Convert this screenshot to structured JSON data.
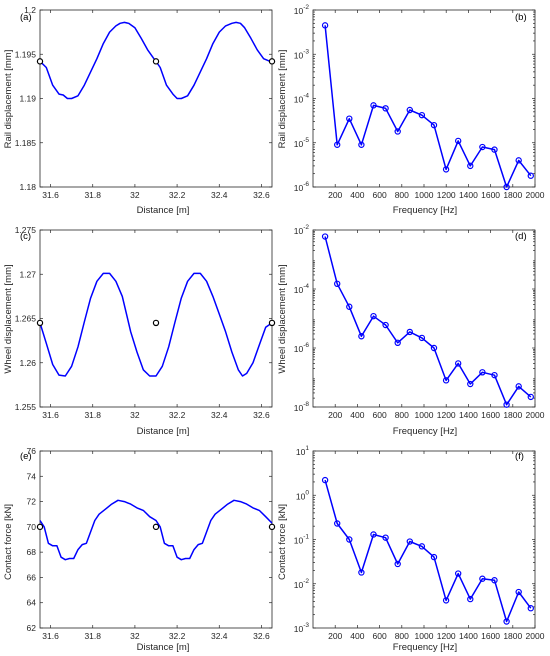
{
  "colors": {
    "series": "#0000ff",
    "marker_dark": "#000000",
    "axis": "#262626"
  },
  "chart_data": [
    {
      "id": "a",
      "type": "line",
      "panel_label": "(a)",
      "xlabel": "Distance [m]",
      "ylabel": "Rail displacement [mm]",
      "xlim": [
        31.55,
        32.65
      ],
      "ylim": [
        1.18,
        1.2
      ],
      "yscale": "linear",
      "xticks": [
        31.6,
        31.8,
        32,
        32.2,
        32.4,
        32.6
      ],
      "xtick_labels": [
        "31.6",
        "31.8",
        "32",
        "32.2",
        "32.4",
        "32.6"
      ],
      "yticks": [
        1.18,
        1.185,
        1.19,
        1.195,
        1.2
      ],
      "ytick_labels": [
        "1.18",
        "1.185",
        "1.19",
        "1.195",
        "1.2"
      ],
      "series": [
        {
          "x": [
            31.55,
            31.58,
            31.61,
            31.64,
            31.66,
            31.68,
            31.7,
            31.73,
            31.76,
            31.79,
            31.82,
            31.85,
            31.88,
            31.91,
            31.93,
            31.95,
            31.97,
            32.0,
            32.03,
            32.06,
            32.09,
            32.1,
            32.12,
            32.15,
            32.18,
            32.2,
            32.22,
            32.25,
            32.28,
            32.31,
            32.34,
            32.37,
            32.4,
            32.43,
            32.46,
            32.48,
            32.5,
            32.52,
            32.55,
            32.58,
            32.61,
            32.64
          ],
          "y": [
            1.1942,
            1.1935,
            1.1915,
            1.1905,
            1.1904,
            1.19,
            1.19,
            1.1903,
            1.1915,
            1.193,
            1.1945,
            1.1962,
            1.1975,
            1.1982,
            1.1985,
            1.1986,
            1.1985,
            1.198,
            1.1968,
            1.1955,
            1.1945,
            1.1942,
            1.1935,
            1.1915,
            1.1905,
            1.19,
            1.19,
            1.1903,
            1.1915,
            1.193,
            1.1945,
            1.1962,
            1.1975,
            1.1982,
            1.1985,
            1.1986,
            1.1985,
            1.198,
            1.1968,
            1.1955,
            1.1945,
            1.1942
          ]
        }
      ],
      "markers": {
        "x": [
          31.55,
          32.1,
          32.65
        ],
        "y": [
          1.1942,
          1.1942,
          1.1942
        ]
      }
    },
    {
      "id": "b",
      "type": "line",
      "panel_label": "(b)",
      "xlabel": "Frequency [Hz]",
      "ylabel": "Rail displacement [mm]",
      "xlim": [
        0,
        2000
      ],
      "ylim": [
        1e-06,
        0.01
      ],
      "yscale": "log",
      "xticks": [
        200,
        400,
        600,
        800,
        1000,
        1200,
        1400,
        1600,
        1800,
        2000
      ],
      "xtick_labels": [
        "200",
        "400",
        "600",
        "800",
        "1000",
        "1200",
        "1400",
        "1600",
        "1800",
        "2000"
      ],
      "yticks": [
        1e-06,
        1e-05,
        0.0001,
        0.001,
        0.01
      ],
      "ytick_bases": [
        "10",
        "10",
        "10",
        "10",
        "10"
      ],
      "ytick_exps": [
        "-6",
        "-5",
        "-4",
        "-3",
        "-2"
      ],
      "series": [
        {
          "x": [
            109,
            218,
            327,
            436,
            545,
            654,
            763,
            872,
            981,
            1090,
            1199,
            1308,
            1417,
            1526,
            1635,
            1744,
            1853,
            1962
          ],
          "y": [
            0.0045,
            9e-06,
            3.5e-05,
            9e-06,
            7e-05,
            6e-05,
            1.8e-05,
            5.5e-05,
            4.2e-05,
            2.5e-05,
            2.5e-06,
            1.1e-05,
            3e-06,
            8e-06,
            7e-06,
            1e-06,
            4e-06,
            1.8e-06
          ]
        }
      ]
    },
    {
      "id": "c",
      "type": "line",
      "panel_label": "(c)",
      "xlabel": "Distance [m]",
      "ylabel": "Wheel displacement [mm]",
      "xlim": [
        31.55,
        32.65
      ],
      "ylim": [
        1.255,
        1.275
      ],
      "yscale": "linear",
      "xticks": [
        31.6,
        31.8,
        32,
        32.2,
        32.4,
        32.6
      ],
      "xtick_labels": [
        "31.6",
        "31.8",
        "32",
        "32.2",
        "32.4",
        "32.6"
      ],
      "yticks": [
        1.255,
        1.26,
        1.265,
        1.27,
        1.275
      ],
      "ytick_labels": [
        "1.255",
        "1.26",
        "1.265",
        "1.27",
        "1.275"
      ],
      "series": [
        {
          "x": [
            31.55,
            31.58,
            31.61,
            31.64,
            31.67,
            31.7,
            31.73,
            31.76,
            31.79,
            31.82,
            31.85,
            31.88,
            31.91,
            31.94,
            31.96,
            31.98,
            32.01,
            32.04,
            32.07,
            32.1,
            32.13,
            32.16,
            32.19,
            32.22,
            32.25,
            32.28,
            32.31,
            32.34,
            32.37,
            32.4,
            32.43,
            32.46,
            32.49,
            32.51,
            32.53,
            32.56,
            32.59,
            32.62,
            32.65
          ],
          "y": [
            1.2645,
            1.2622,
            1.2598,
            1.2586,
            1.2585,
            1.2596,
            1.2618,
            1.2646,
            1.2673,
            1.2692,
            1.2701,
            1.2701,
            1.2692,
            1.2675,
            1.2655,
            1.2635,
            1.2612,
            1.2592,
            1.2585,
            1.2585,
            1.2596,
            1.2618,
            1.2646,
            1.2673,
            1.2692,
            1.2701,
            1.2701,
            1.2692,
            1.2675,
            1.2655,
            1.2635,
            1.2612,
            1.2592,
            1.2585,
            1.2588,
            1.26,
            1.262,
            1.264,
            1.2645
          ]
        }
      ],
      "markers": {
        "x": [
          31.55,
          32.1,
          32.65
        ],
        "y": [
          1.2645,
          1.2645,
          1.2645
        ]
      }
    },
    {
      "id": "d",
      "type": "line",
      "panel_label": "(d)",
      "xlabel": "Frequency [Hz]",
      "ylabel": "Wheel displacement [mm]",
      "xlim": [
        0,
        2000
      ],
      "ylim": [
        1e-08,
        0.01
      ],
      "yscale": "log",
      "xticks": [
        200,
        400,
        600,
        800,
        1000,
        1200,
        1400,
        1600,
        1800,
        2000
      ],
      "xtick_labels": [
        "200",
        "400",
        "600",
        "800",
        "1000",
        "1200",
        "1400",
        "1600",
        "1800",
        "2000"
      ],
      "yticks": [
        1e-08,
        1e-06,
        0.0001,
        0.01
      ],
      "ytick_bases": [
        "10",
        "10",
        "10",
        "10"
      ],
      "ytick_exps": [
        "-8",
        "-6",
        "-4",
        "-2"
      ],
      "series": [
        {
          "x": [
            109,
            218,
            327,
            436,
            545,
            654,
            763,
            872,
            981,
            1090,
            1199,
            1308,
            1417,
            1526,
            1635,
            1744,
            1853,
            1962
          ],
          "y": [
            0.006,
            0.00015,
            2.5e-05,
            2.5e-06,
            1.2e-05,
            6e-06,
            1.5e-06,
            3.5e-06,
            2.2e-06,
            1e-06,
            8e-08,
            3e-07,
            6e-08,
            1.5e-07,
            1.2e-07,
            1.2e-08,
            5e-08,
            2.2e-08
          ]
        }
      ]
    },
    {
      "id": "e",
      "type": "line",
      "panel_label": "(e)",
      "xlabel": "Distance [m]",
      "ylabel": "Contact force [kN]",
      "xlim": [
        31.55,
        32.65
      ],
      "ylim": [
        62,
        76
      ],
      "yscale": "linear",
      "xticks": [
        31.6,
        31.8,
        32,
        32.2,
        32.4,
        32.6
      ],
      "xtick_labels": [
        "31.6",
        "31.8",
        "32",
        "32.2",
        "32.4",
        "32.6"
      ],
      "yticks": [
        62,
        64,
        66,
        68,
        70,
        72,
        74,
        76
      ],
      "ytick_labels": [
        "62",
        "64",
        "66",
        "68",
        "70",
        "72",
        "74",
        "76"
      ],
      "series": [
        {
          "x": [
            31.55,
            31.57,
            31.59,
            31.61,
            31.63,
            31.65,
            31.67,
            31.69,
            31.71,
            31.73,
            31.75,
            31.77,
            31.79,
            31.81,
            31.83,
            31.86,
            31.89,
            31.92,
            31.95,
            31.98,
            32.01,
            32.04,
            32.07,
            32.1,
            32.12,
            32.14,
            32.16,
            32.18,
            32.2,
            32.22,
            32.24,
            32.26,
            32.28,
            32.3,
            32.32,
            32.34,
            32.36,
            32.38,
            32.41,
            32.44,
            32.47,
            32.5,
            32.53,
            32.56,
            32.59,
            32.62,
            32.65
          ],
          "y": [
            70.5,
            70.0,
            68.7,
            68.5,
            68.5,
            67.6,
            67.4,
            67.5,
            67.5,
            68.2,
            68.6,
            68.7,
            69.6,
            70.5,
            71.0,
            71.4,
            71.8,
            72.1,
            72.0,
            71.8,
            71.5,
            71.3,
            70.8,
            70.5,
            70.0,
            68.7,
            68.5,
            68.5,
            67.6,
            67.4,
            67.5,
            67.5,
            68.2,
            68.6,
            68.7,
            69.6,
            70.5,
            71.0,
            71.4,
            71.8,
            72.1,
            72.0,
            71.8,
            71.5,
            71.3,
            70.8,
            70.3
          ]
        }
      ],
      "markers": {
        "x": [
          31.55,
          32.1,
          32.65
        ],
        "y": [
          70.0,
          70.0,
          70.0
        ]
      }
    },
    {
      "id": "f",
      "type": "line",
      "panel_label": "(f)",
      "xlabel": "Frequency [Hz]",
      "ylabel": "Contact force [kN]",
      "xlim": [
        0,
        2000
      ],
      "ylim": [
        0.001,
        10
      ],
      "yscale": "log",
      "xticks": [
        200,
        400,
        600,
        800,
        1000,
        1200,
        1400,
        1600,
        1800,
        2000
      ],
      "xtick_labels": [
        "200",
        "400",
        "600",
        "800",
        "1000",
        "1200",
        "1400",
        "1600",
        "1800",
        "2000"
      ],
      "yticks": [
        0.001,
        0.01,
        0.1,
        1,
        10
      ],
      "ytick_bases": [
        "10",
        "10",
        "10",
        "10",
        "10"
      ],
      "ytick_exps": [
        "-3",
        "-2",
        "-1",
        "0",
        "1"
      ],
      "series": [
        {
          "x": [
            109,
            218,
            327,
            436,
            545,
            654,
            763,
            872,
            981,
            1090,
            1199,
            1308,
            1417,
            1526,
            1635,
            1744,
            1853,
            1962
          ],
          "y": [
            2.2,
            0.23,
            0.1,
            0.018,
            0.13,
            0.11,
            0.028,
            0.09,
            0.07,
            0.04,
            0.0042,
            0.017,
            0.0045,
            0.013,
            0.012,
            0.0014,
            0.0065,
            0.0028
          ]
        }
      ]
    }
  ]
}
